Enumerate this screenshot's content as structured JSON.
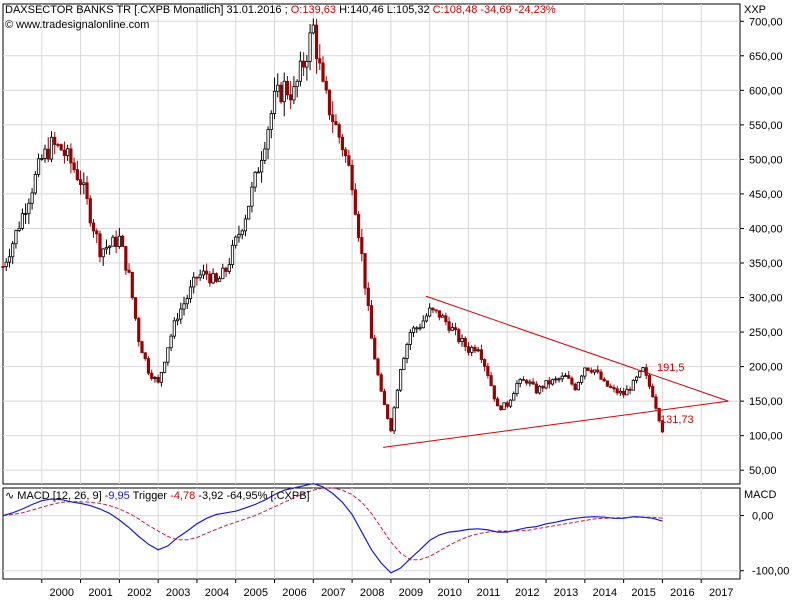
{
  "header": {
    "title": "DAXSECTOR BANKS TR [.CXPB  Monatlich] 31.01.2016 ;",
    "open": "O:139,63",
    "high": "H:140,46",
    "low": "L:105,32",
    "close": "C:108,48",
    "change": "-34,69",
    "change_pct": "-24,23%",
    "exchange": "XXP",
    "watermark": "© www.tradesignalonline.com"
  },
  "macd_header": {
    "label": "MACD [12, 26, 9]",
    "macd_value": "-9,95",
    "trigger_label": "Trigger",
    "trigger_value": "-4,78",
    "diff": "-3,92",
    "diff_pct": "-64,95%",
    "symbol": "[.CXPB]",
    "axis_title": "MACD"
  },
  "annotations": {
    "upper_label": "191,5",
    "lower_label": "131,73"
  },
  "colors": {
    "up_candle": "#000000",
    "down_candle": "#990000",
    "trendline": "#e00000",
    "macd_line": "#1a1ad4",
    "trigger_line": "#c81c4a",
    "grid": "#d8d8d8"
  },
  "chart_data": [
    {
      "type": "line",
      "title": "DAXSECTOR BANKS TR [.CXPB  Monatlich] 31.01.2016",
      "xlabel": "",
      "ylabel": "",
      "ylim": [
        30,
        725
      ],
      "grid": true,
      "x_ticks": [
        "2000",
        "2001",
        "2002",
        "2003",
        "2004",
        "2005",
        "2006",
        "2007",
        "2008",
        "2009",
        "2010",
        "2011",
        "2012",
        "2013",
        "2014",
        "2015",
        "2016",
        "2017"
      ],
      "y_ticks": [
        "50,00",
        "100,00",
        "150,00",
        "200,00",
        "250,00",
        "300,00",
        "350,00",
        "400,00",
        "450,00",
        "500,00",
        "550,00",
        "600,00",
        "650,00",
        "700,00"
      ],
      "y_tick_values": [
        50,
        100,
        150,
        200,
        250,
        300,
        350,
        400,
        450,
        500,
        550,
        600,
        650,
        700
      ],
      "x": [
        1999.0,
        1999.25,
        1999.5,
        1999.75,
        2000.0,
        2000.25,
        2000.5,
        2000.75,
        2001.0,
        2001.25,
        2001.5,
        2001.75,
        2002.0,
        2002.25,
        2002.5,
        2002.75,
        2003.0,
        2003.25,
        2003.5,
        2003.75,
        2004.0,
        2004.25,
        2004.5,
        2004.75,
        2005.0,
        2005.25,
        2005.5,
        2005.75,
        2006.0,
        2006.25,
        2006.5,
        2006.75,
        2007.0,
        2007.25,
        2007.5,
        2007.75,
        2008.0,
        2008.25,
        2008.5,
        2008.75,
        2009.0,
        2009.25,
        2009.5,
        2009.75,
        2010.0,
        2010.25,
        2010.5,
        2010.75,
        2011.0,
        2011.25,
        2011.5,
        2011.75,
        2012.0,
        2012.25,
        2012.5,
        2012.75,
        2013.0,
        2013.25,
        2013.5,
        2013.75,
        2014.0,
        2014.25,
        2014.5,
        2014.75,
        2015.0,
        2015.25,
        2015.5,
        2015.75,
        2016.0
      ],
      "series": [
        {
          "values": [
            345,
            380,
            420,
            460,
            500,
            520,
            515,
            495,
            470,
            420,
            370,
            375,
            385,
            330,
            240,
            195,
            175,
            230,
            275,
            300,
            330,
            335,
            320,
            340,
            380,
            420,
            470,
            530,
            585,
            605,
            595,
            640,
            690,
            600,
            560,
            520,
            470,
            360,
            240,
            160,
            110,
            200,
            250,
            260,
            280,
            275,
            260,
            240,
            225,
            230,
            190,
            140,
            145,
            175,
            180,
            165,
            175,
            180,
            185,
            170,
            200,
            195,
            175,
            165,
            160,
            175,
            195,
            160,
            108
          ]
        }
      ],
      "trendlines": [
        {
          "name": "upper",
          "x": [
            2009.9,
            2017.7
          ],
          "y": [
            302,
            150
          ]
        },
        {
          "name": "lower",
          "x": [
            2008.8,
            2017.7
          ],
          "y": [
            83,
            150
          ]
        }
      ]
    },
    {
      "type": "line",
      "title": "MACD [12, 26, 9]",
      "ylim": [
        -115,
        50
      ],
      "y_ticks": [
        "0,00",
        "-100,00"
      ],
      "y_tick_values": [
        0,
        -100
      ],
      "x": [
        1999.0,
        1999.25,
        1999.5,
        1999.75,
        2000.0,
        2000.25,
        2000.5,
        2000.75,
        2001.0,
        2001.25,
        2001.5,
        2001.75,
        2002.0,
        2002.25,
        2002.5,
        2002.75,
        2003.0,
        2003.25,
        2003.5,
        2003.75,
        2004.0,
        2004.25,
        2004.5,
        2004.75,
        2005.0,
        2005.25,
        2005.5,
        2005.75,
        2006.0,
        2006.25,
        2006.5,
        2006.75,
        2007.0,
        2007.25,
        2007.5,
        2007.75,
        2008.0,
        2008.25,
        2008.5,
        2008.75,
        2009.0,
        2009.25,
        2009.5,
        2009.75,
        2010.0,
        2010.25,
        2010.5,
        2010.75,
        2011.0,
        2011.25,
        2011.5,
        2011.75,
        2012.0,
        2012.25,
        2012.5,
        2012.75,
        2013.0,
        2013.25,
        2013.5,
        2013.75,
        2014.0,
        2014.25,
        2014.5,
        2014.75,
        2015.0,
        2015.25,
        2015.5,
        2015.75,
        2016.0
      ],
      "series": [
        {
          "name": "MACD",
          "values": [
            0,
            5,
            12,
            20,
            27,
            30,
            29,
            25,
            22,
            18,
            12,
            4,
            -8,
            -22,
            -38,
            -52,
            -62,
            -55,
            -40,
            -28,
            -15,
            -5,
            2,
            5,
            8,
            14,
            20,
            28,
            38,
            46,
            50,
            54,
            58,
            52,
            40,
            24,
            2,
            -30,
            -62,
            -86,
            -104,
            -95,
            -78,
            -62,
            -45,
            -35,
            -30,
            -28,
            -25,
            -24,
            -26,
            -30,
            -30,
            -26,
            -22,
            -20,
            -15,
            -12,
            -8,
            -5,
            -3,
            -2,
            -3,
            -5,
            -5,
            -2,
            -3,
            -5,
            -9.95
          ]
        },
        {
          "name": "Trigger",
          "values": [
            0,
            2,
            5,
            10,
            15,
            20,
            24,
            25,
            25,
            24,
            22,
            18,
            12,
            4,
            -6,
            -18,
            -28,
            -38,
            -44,
            -44,
            -40,
            -32,
            -25,
            -18,
            -12,
            -6,
            0,
            8,
            16,
            24,
            32,
            40,
            46,
            50,
            50,
            46,
            38,
            24,
            4,
            -22,
            -48,
            -68,
            -80,
            -80,
            -74,
            -64,
            -54,
            -45,
            -38,
            -33,
            -30,
            -28,
            -28,
            -28,
            -27,
            -24,
            -21,
            -18,
            -15,
            -12,
            -9,
            -6,
            -5,
            -4,
            -4,
            -3,
            -3,
            -3,
            -4.78
          ]
        }
      ]
    }
  ]
}
